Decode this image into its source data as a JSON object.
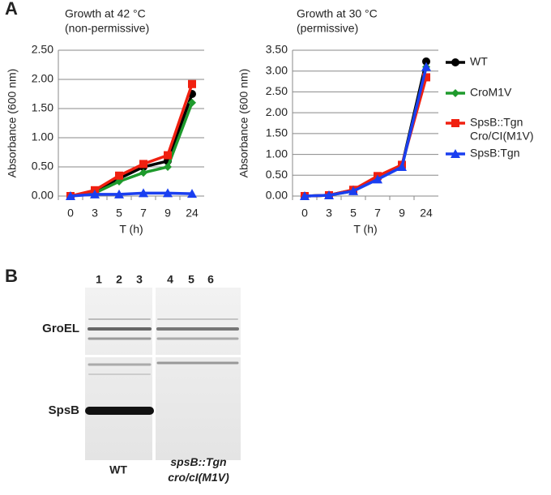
{
  "panels": [
    "A",
    "B"
  ],
  "chart_data": [
    {
      "type": "line",
      "title": "Growth at 42 °C",
      "subtitle": "(non-permissive)",
      "y_label": "Absorbance (600 nm)",
      "x_label": "T (h)",
      "categories": [
        "0",
        "3",
        "5",
        "7",
        "9",
        "24"
      ],
      "ylim": [
        0,
        2.5
      ],
      "yticks": [
        {
          "value": 0,
          "label": "0.00"
        },
        {
          "value": 0.5,
          "label": "0.50"
        },
        {
          "value": 1,
          "label": "1.00"
        },
        {
          "value": 1.5,
          "label": "1.50"
        },
        {
          "value": 2,
          "label": "2.00"
        },
        {
          "value": 2.5,
          "label": "2.50"
        }
      ],
      "grid": true,
      "series": [
        {
          "color": "#000000",
          "marker": "circle",
          "values": [
            0,
            0.05,
            0.3,
            0.5,
            0.6,
            1.75
          ]
        },
        {
          "color": "#1e9a2c",
          "marker": "diamond",
          "values": [
            0,
            0.05,
            0.25,
            0.4,
            0.5,
            1.6
          ]
        },
        {
          "color": "#f02010",
          "marker": "square",
          "values": [
            0,
            0.1,
            0.35,
            0.55,
            0.7,
            1.92
          ]
        },
        {
          "color": "#1a3ff0",
          "marker": "triangle",
          "values": [
            0,
            0.03,
            0.03,
            0.05,
            0.05,
            0.04
          ]
        }
      ]
    },
    {
      "type": "line",
      "title": "Growth at 30 °C",
      "subtitle": "(permissive)",
      "y_label": "Absorbance (600 nm)",
      "x_label": "T (h)",
      "categories": [
        "0",
        "3",
        "5",
        "7",
        "9",
        "24"
      ],
      "ylim": [
        0,
        3.5
      ],
      "yticks": [
        {
          "value": 0,
          "label": "0.00"
        },
        {
          "value": 0.5,
          "label": "0.50"
        },
        {
          "value": 1,
          "label": "1.00"
        },
        {
          "value": 1.5,
          "label": "1.50"
        },
        {
          "value": 2,
          "label": "2.00"
        },
        {
          "value": 2.5,
          "label": "2.50"
        },
        {
          "value": 3,
          "label": "3.00"
        },
        {
          "value": 3.5,
          "label": "3.50"
        }
      ],
      "grid": true,
      "legend": "right",
      "series": [
        {
          "name": [
            "WT"
          ],
          "color": "#000000",
          "marker": "circle",
          "values": [
            0,
            0.02,
            0.15,
            0.45,
            0.72,
            3.23
          ]
        },
        {
          "name": [
            "CroM1V"
          ],
          "color": "#1e9a2c",
          "marker": "diamond",
          "values": [
            0,
            0.02,
            0.12,
            0.42,
            0.7,
            3.1
          ]
        },
        {
          "name": [
            "SpsB::Tgn",
            "Cro/CI(M1V)"
          ],
          "color": "#f02010",
          "marker": "square",
          "values": [
            0,
            0.02,
            0.15,
            0.48,
            0.75,
            2.85
          ]
        },
        {
          "name": [
            "SpsB:Tgn"
          ],
          "color": "#1a3ff0",
          "marker": "triangle",
          "values": [
            0,
            0.02,
            0.12,
            0.4,
            0.7,
            3.1
          ]
        }
      ]
    }
  ],
  "blot": {
    "lanes": [
      "1",
      "2",
      "3",
      "4",
      "5",
      "6"
    ],
    "bands": [
      "GroEL",
      "SpsB"
    ],
    "groups": [
      [
        "WT"
      ],
      [
        "spsB::Tgn",
        "cro/cI(M1V)"
      ]
    ]
  }
}
